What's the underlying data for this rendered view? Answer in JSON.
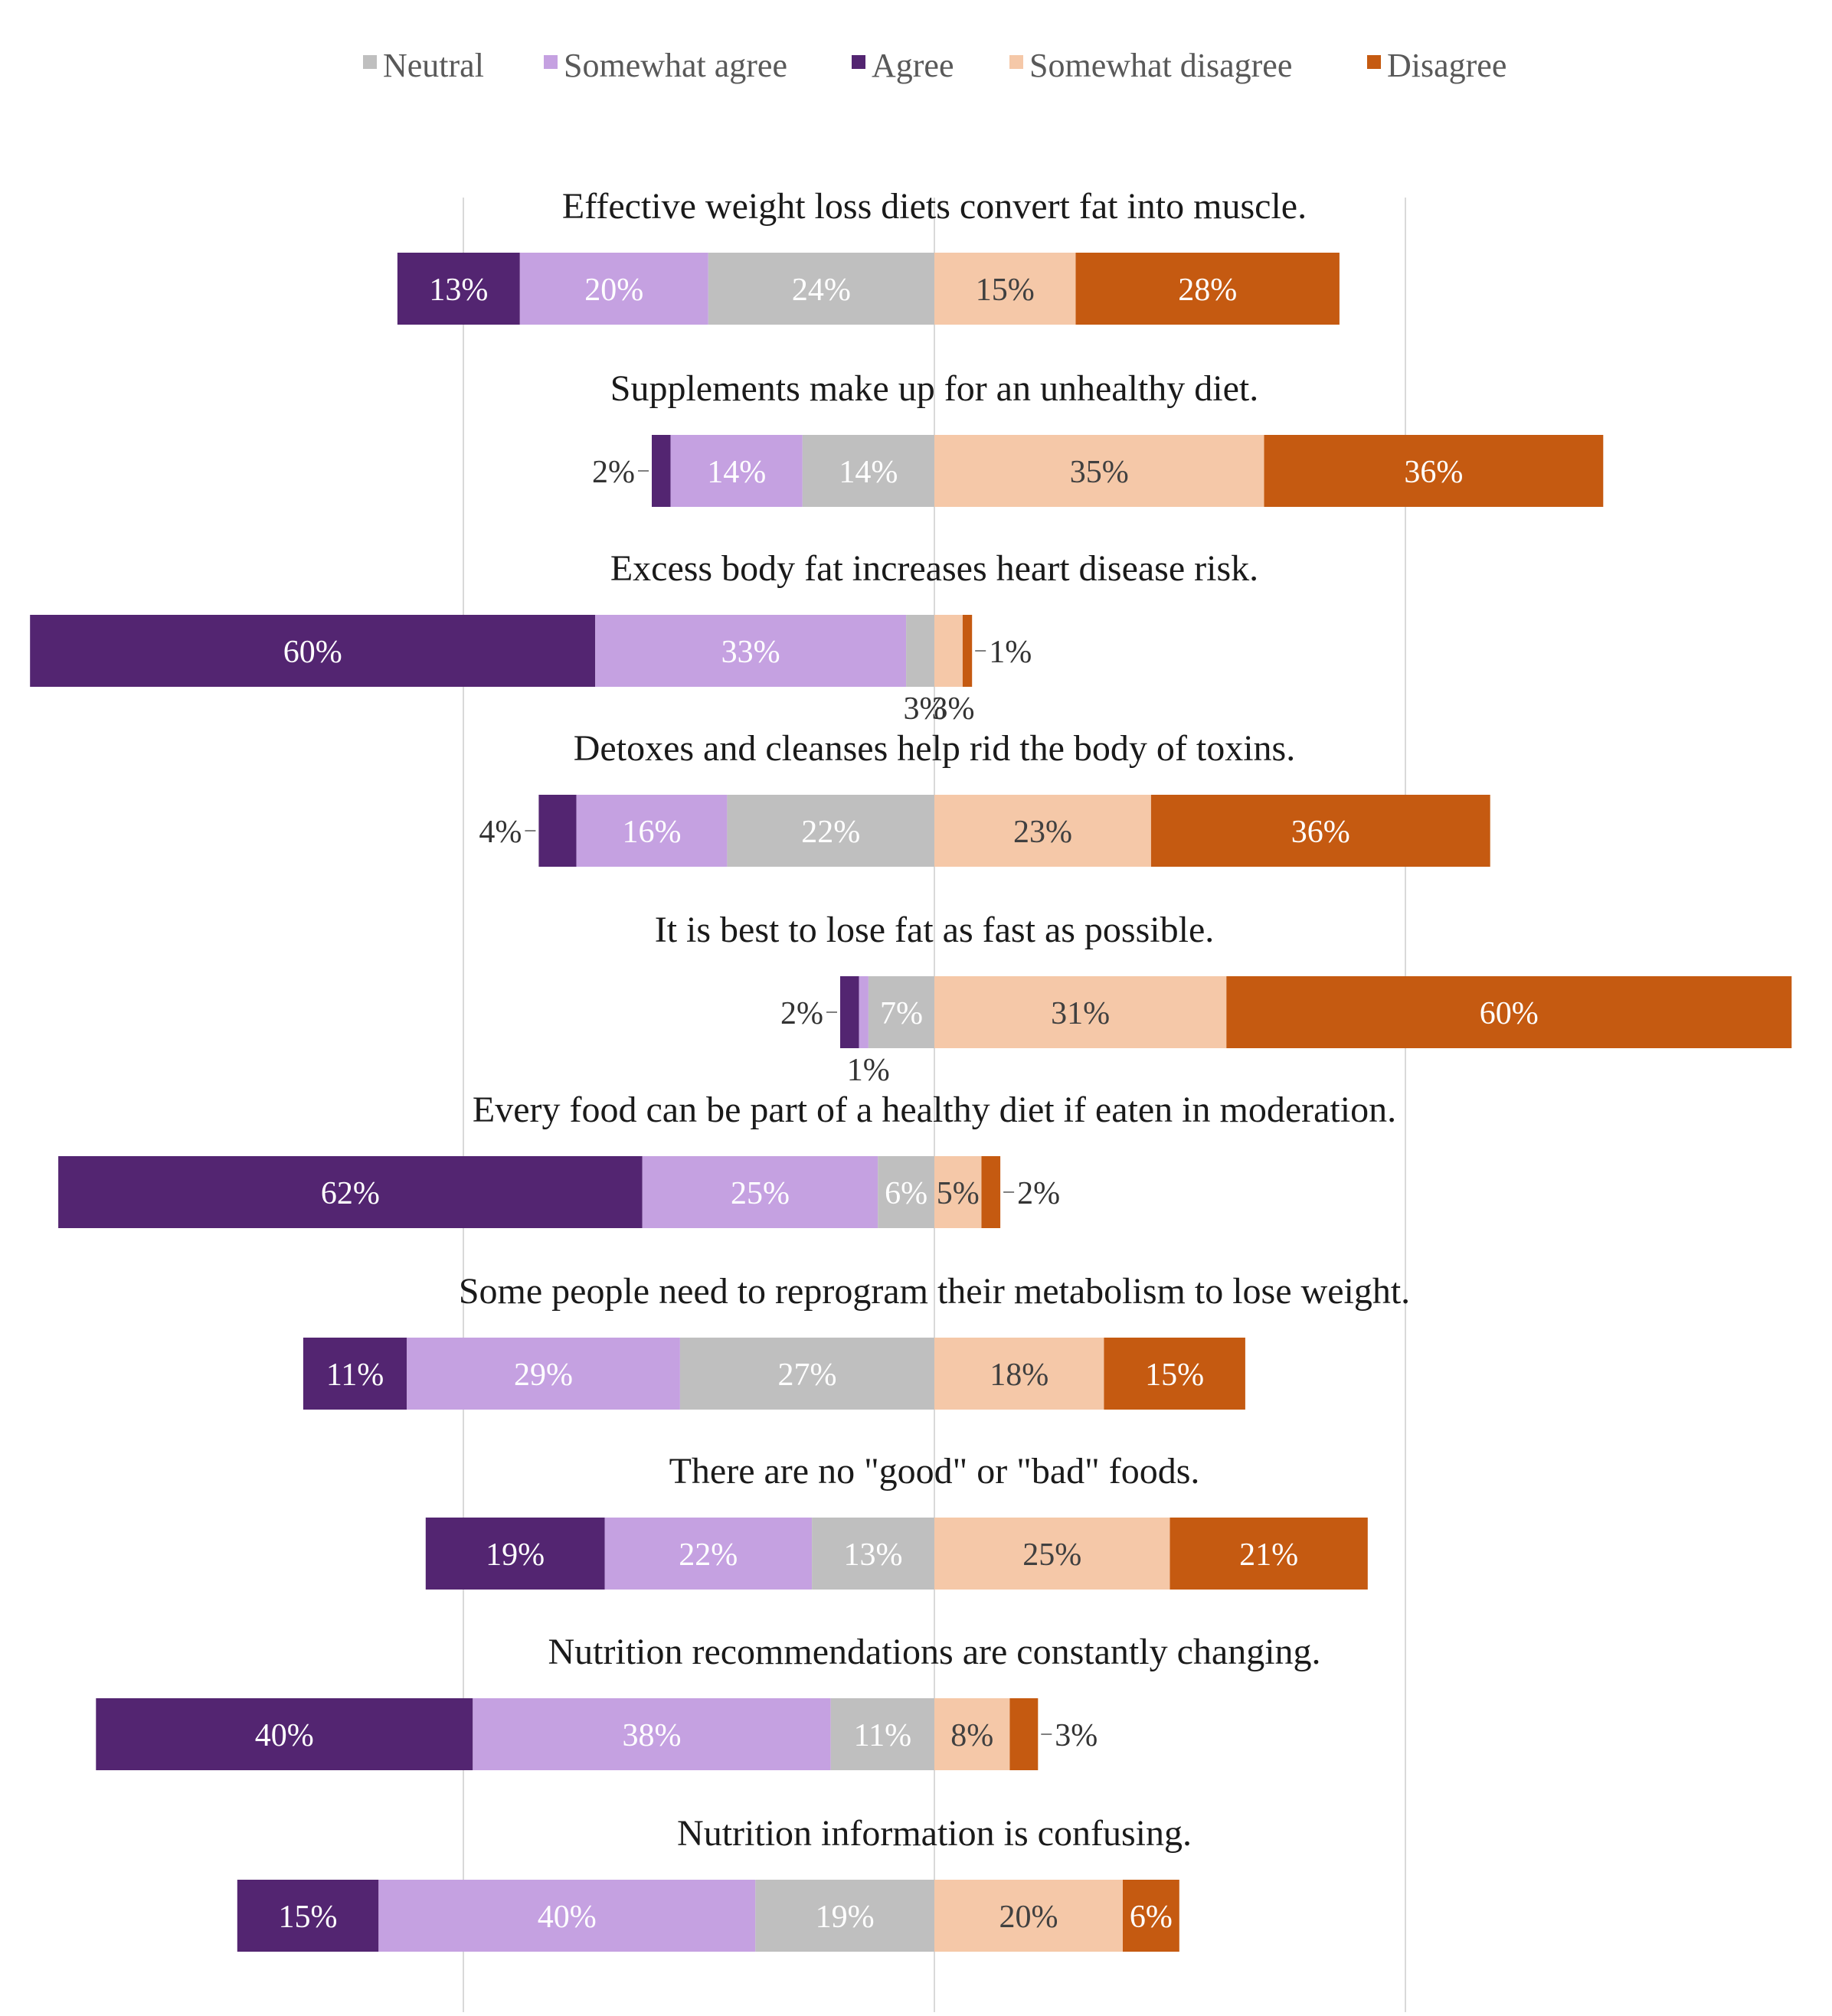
{
  "chart_data": {
    "type": "bar",
    "orientation": "horizontal",
    "stacked": true,
    "diverging": true,
    "title": "",
    "xlabel": "",
    "ylabel": "",
    "xlim": [
      -100,
      100
    ],
    "grid": true,
    "legend_position": "top",
    "legend": [
      {
        "key": "neutral",
        "label": "Neutral",
        "color": "#BFBFBF"
      },
      {
        "key": "somewhat_agree",
        "label": "Somewhat agree",
        "color": "#C5A1E1"
      },
      {
        "key": "agree",
        "label": "Agree",
        "color": "#532571"
      },
      {
        "key": "somewhat_disagree",
        "label": "Somewhat disagree",
        "color": "#F5C8A8"
      },
      {
        "key": "disagree",
        "label": "Disagree",
        "color": "#C55A11"
      }
    ],
    "segment_order": [
      "agree",
      "somewhat_agree",
      "neutral",
      "somewhat_disagree",
      "disagree"
    ],
    "statements": [
      {
        "label": "Effective weight loss diets convert fat into muscle.",
        "agree": 13,
        "somewhat_agree": 20,
        "neutral": 24,
        "somewhat_disagree": 15,
        "disagree": 28
      },
      {
        "label": "Supplements make up for an unhealthy diet.",
        "agree": 2,
        "somewhat_agree": 14,
        "neutral": 14,
        "somewhat_disagree": 35,
        "disagree": 36
      },
      {
        "label": "Excess body fat increases heart disease risk.",
        "agree": 60,
        "somewhat_agree": 33,
        "neutral": 3,
        "somewhat_disagree": 3,
        "disagree": 1
      },
      {
        "label": "Detoxes and cleanses help rid the body of toxins.",
        "agree": 4,
        "somewhat_agree": 16,
        "neutral": 22,
        "somewhat_disagree": 23,
        "disagree": 36
      },
      {
        "label": "It is best to lose fat as fast as possible.",
        "agree": 2,
        "somewhat_agree": 1,
        "neutral": 7,
        "somewhat_disagree": 31,
        "disagree": 60
      },
      {
        "label": "Every food can be part of a healthy diet if eaten in moderation.",
        "agree": 62,
        "somewhat_agree": 25,
        "neutral": 6,
        "somewhat_disagree": 5,
        "disagree": 2
      },
      {
        "label": "Some people need to reprogram their metabolism to lose weight.",
        "agree": 11,
        "somewhat_agree": 29,
        "neutral": 27,
        "somewhat_disagree": 18,
        "disagree": 15
      },
      {
        "label": "There are no \"good\" or \"bad\" foods.",
        "agree": 19,
        "somewhat_agree": 22,
        "neutral": 13,
        "somewhat_disagree": 25,
        "disagree": 21
      },
      {
        "label": "Nutrition recommendations are constantly changing.",
        "agree": 40,
        "somewhat_agree": 38,
        "neutral": 11,
        "somewhat_disagree": 8,
        "disagree": 3
      },
      {
        "label": "Nutrition information is confusing.",
        "agree": 15,
        "somewhat_agree": 40,
        "neutral": 19,
        "somewhat_disagree": 20,
        "disagree": 6
      }
    ]
  }
}
